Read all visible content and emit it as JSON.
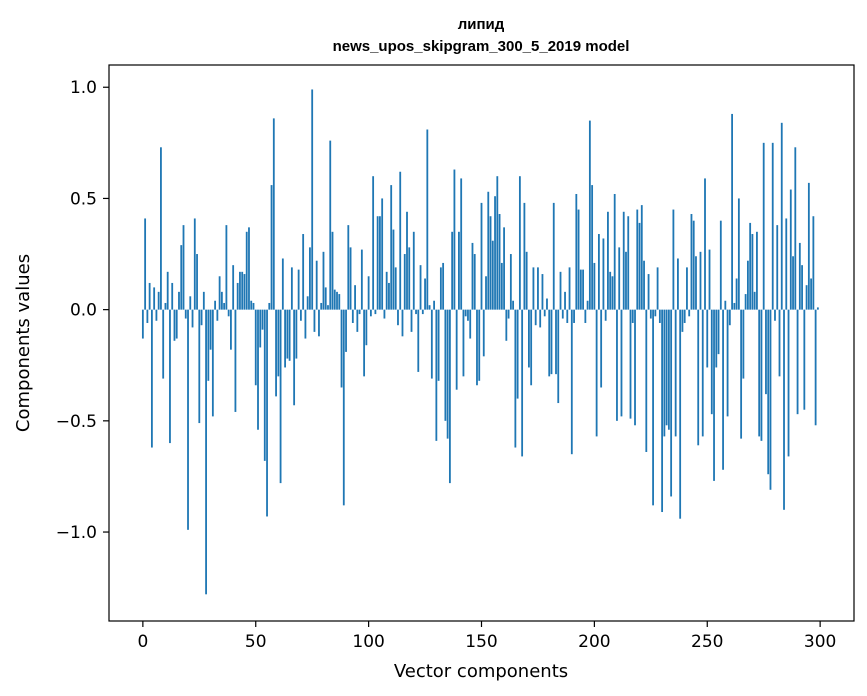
{
  "chart_data": {
    "type": "bar",
    "title": "липид",
    "subtitle": "news_upos_skipgram_300_5_2019 model",
    "xlabel": "Vector components",
    "ylabel": "Components values",
    "xlim": [
      -15,
      315
    ],
    "ylim": [
      -1.4,
      1.1
    ],
    "xticks": [
      0,
      50,
      100,
      150,
      200,
      250,
      300
    ],
    "yticks": [
      -1.0,
      -0.5,
      0.0,
      0.5,
      1.0
    ],
    "ytick_labels": [
      "−1.0",
      "−0.5",
      "0.0",
      "0.5",
      "1.0"
    ],
    "grid": false,
    "legend": "none",
    "bar_color": "#1f77b4",
    "x_start": 0,
    "values": [
      -0.13,
      0.41,
      -0.06,
      0.12,
      -0.62,
      0.1,
      -0.05,
      0.08,
      0.73,
      -0.31,
      0.03,
      0.17,
      -0.6,
      0.12,
      -0.14,
      -0.13,
      0.08,
      0.29,
      0.38,
      -0.04,
      -0.99,
      0.06,
      -0.08,
      0.41,
      0.25,
      -0.51,
      -0.07,
      0.08,
      -1.28,
      -0.32,
      -0.18,
      -0.48,
      0.04,
      -0.05,
      0.15,
      0.08,
      0.03,
      0.38,
      -0.03,
      -0.18,
      0.2,
      -0.46,
      0.12,
      0.17,
      0.17,
      0.16,
      0.35,
      0.37,
      0.04,
      0.03,
      -0.34,
      -0.54,
      -0.17,
      -0.09,
      -0.68,
      -0.93,
      0.03,
      0.56,
      0.86,
      -0.39,
      -0.3,
      -0.78,
      0.23,
      -0.26,
      -0.22,
      -0.23,
      0.19,
      -0.43,
      -0.22,
      0.18,
      -0.05,
      0.34,
      -0.13,
      0.06,
      0.28,
      0.99,
      -0.1,
      0.22,
      -0.12,
      0.03,
      0.26,
      0.1,
      0.02,
      0.76,
      0.35,
      0.09,
      0.08,
      0.07,
      -0.35,
      -0.88,
      -0.19,
      0.38,
      0.28,
      -0.06,
      0.11,
      -0.1,
      -0.02,
      0.27,
      -0.3,
      -0.16,
      0.15,
      -0.03,
      0.6,
      -0.02,
      0.42,
      0.42,
      0.5,
      -0.04,
      0.17,
      0.12,
      0.56,
      0.36,
      0.19,
      -0.07,
      0.62,
      -0.12,
      0.25,
      0.44,
      0.28,
      -0.1,
      0.35,
      -0.02,
      -0.28,
      0.2,
      -0.02,
      0.14,
      0.81,
      0.02,
      -0.31,
      0.04,
      -0.59,
      -0.32,
      0.19,
      0.21,
      -0.5,
      -0.58,
      -0.78,
      0.35,
      0.63,
      -0.36,
      0.35,
      0.59,
      -0.3,
      -0.03,
      -0.05,
      -0.13,
      0.3,
      0.25,
      -0.34,
      -0.32,
      0.48,
      -0.21,
      0.15,
      0.53,
      0.42,
      0.31,
      0.51,
      0.6,
      0.43,
      0.21,
      0.37,
      -0.14,
      -0.04,
      0.25,
      0.04,
      -0.62,
      -0.4,
      0.6,
      -0.66,
      0.48,
      0.26,
      -0.26,
      -0.34,
      0.19,
      -0.07,
      0.19,
      -0.08,
      0.16,
      -0.03,
      0.05,
      -0.3,
      -0.29,
      0.48,
      -0.29,
      -0.42,
      0.17,
      -0.04,
      0.08,
      -0.06,
      0.19,
      -0.65,
      -0.06,
      0.52,
      0.45,
      0.18,
      0.18,
      -0.06,
      0.04,
      0.85,
      0.56,
      0.21,
      -0.57,
      0.34,
      -0.35,
      0.32,
      -0.05,
      0.44,
      0.17,
      0.15,
      0.52,
      -0.5,
      0.28,
      -0.48,
      0.44,
      0.26,
      0.42,
      -0.49,
      -0.06,
      -0.52,
      0.45,
      0.39,
      0.47,
      0.22,
      -0.64,
      0.16,
      -0.04,
      -0.88,
      -0.03,
      0.19,
      -0.06,
      -0.91,
      -0.57,
      -0.52,
      -0.54,
      -0.84,
      0.45,
      -0.57,
      0.23,
      -0.94,
      -0.1,
      -0.06,
      0.19,
      -0.03,
      0.43,
      0.4,
      0.24,
      -0.61,
      0.26,
      -0.57,
      0.59,
      -0.26,
      0.27,
      -0.47,
      -0.77,
      -0.26,
      -0.2,
      0.4,
      -0.72,
      0.04,
      -0.48,
      -0.07,
      0.88,
      0.03,
      0.14,
      0.5,
      -0.58,
      -0.31,
      0.07,
      0.22,
      0.39,
      0.34,
      0.08,
      0.35,
      -0.57,
      -0.59,
      0.75,
      -0.38,
      -0.74,
      -0.81,
      0.75,
      -0.05,
      0.38,
      -0.3,
      0.84,
      -0.9,
      0.41,
      -0.66,
      0.54,
      0.24,
      0.73,
      -0.47,
      0.3,
      0.2,
      -0.45,
      0.11,
      0.57,
      0.14,
      0.42,
      -0.52,
      0.01
    ]
  }
}
